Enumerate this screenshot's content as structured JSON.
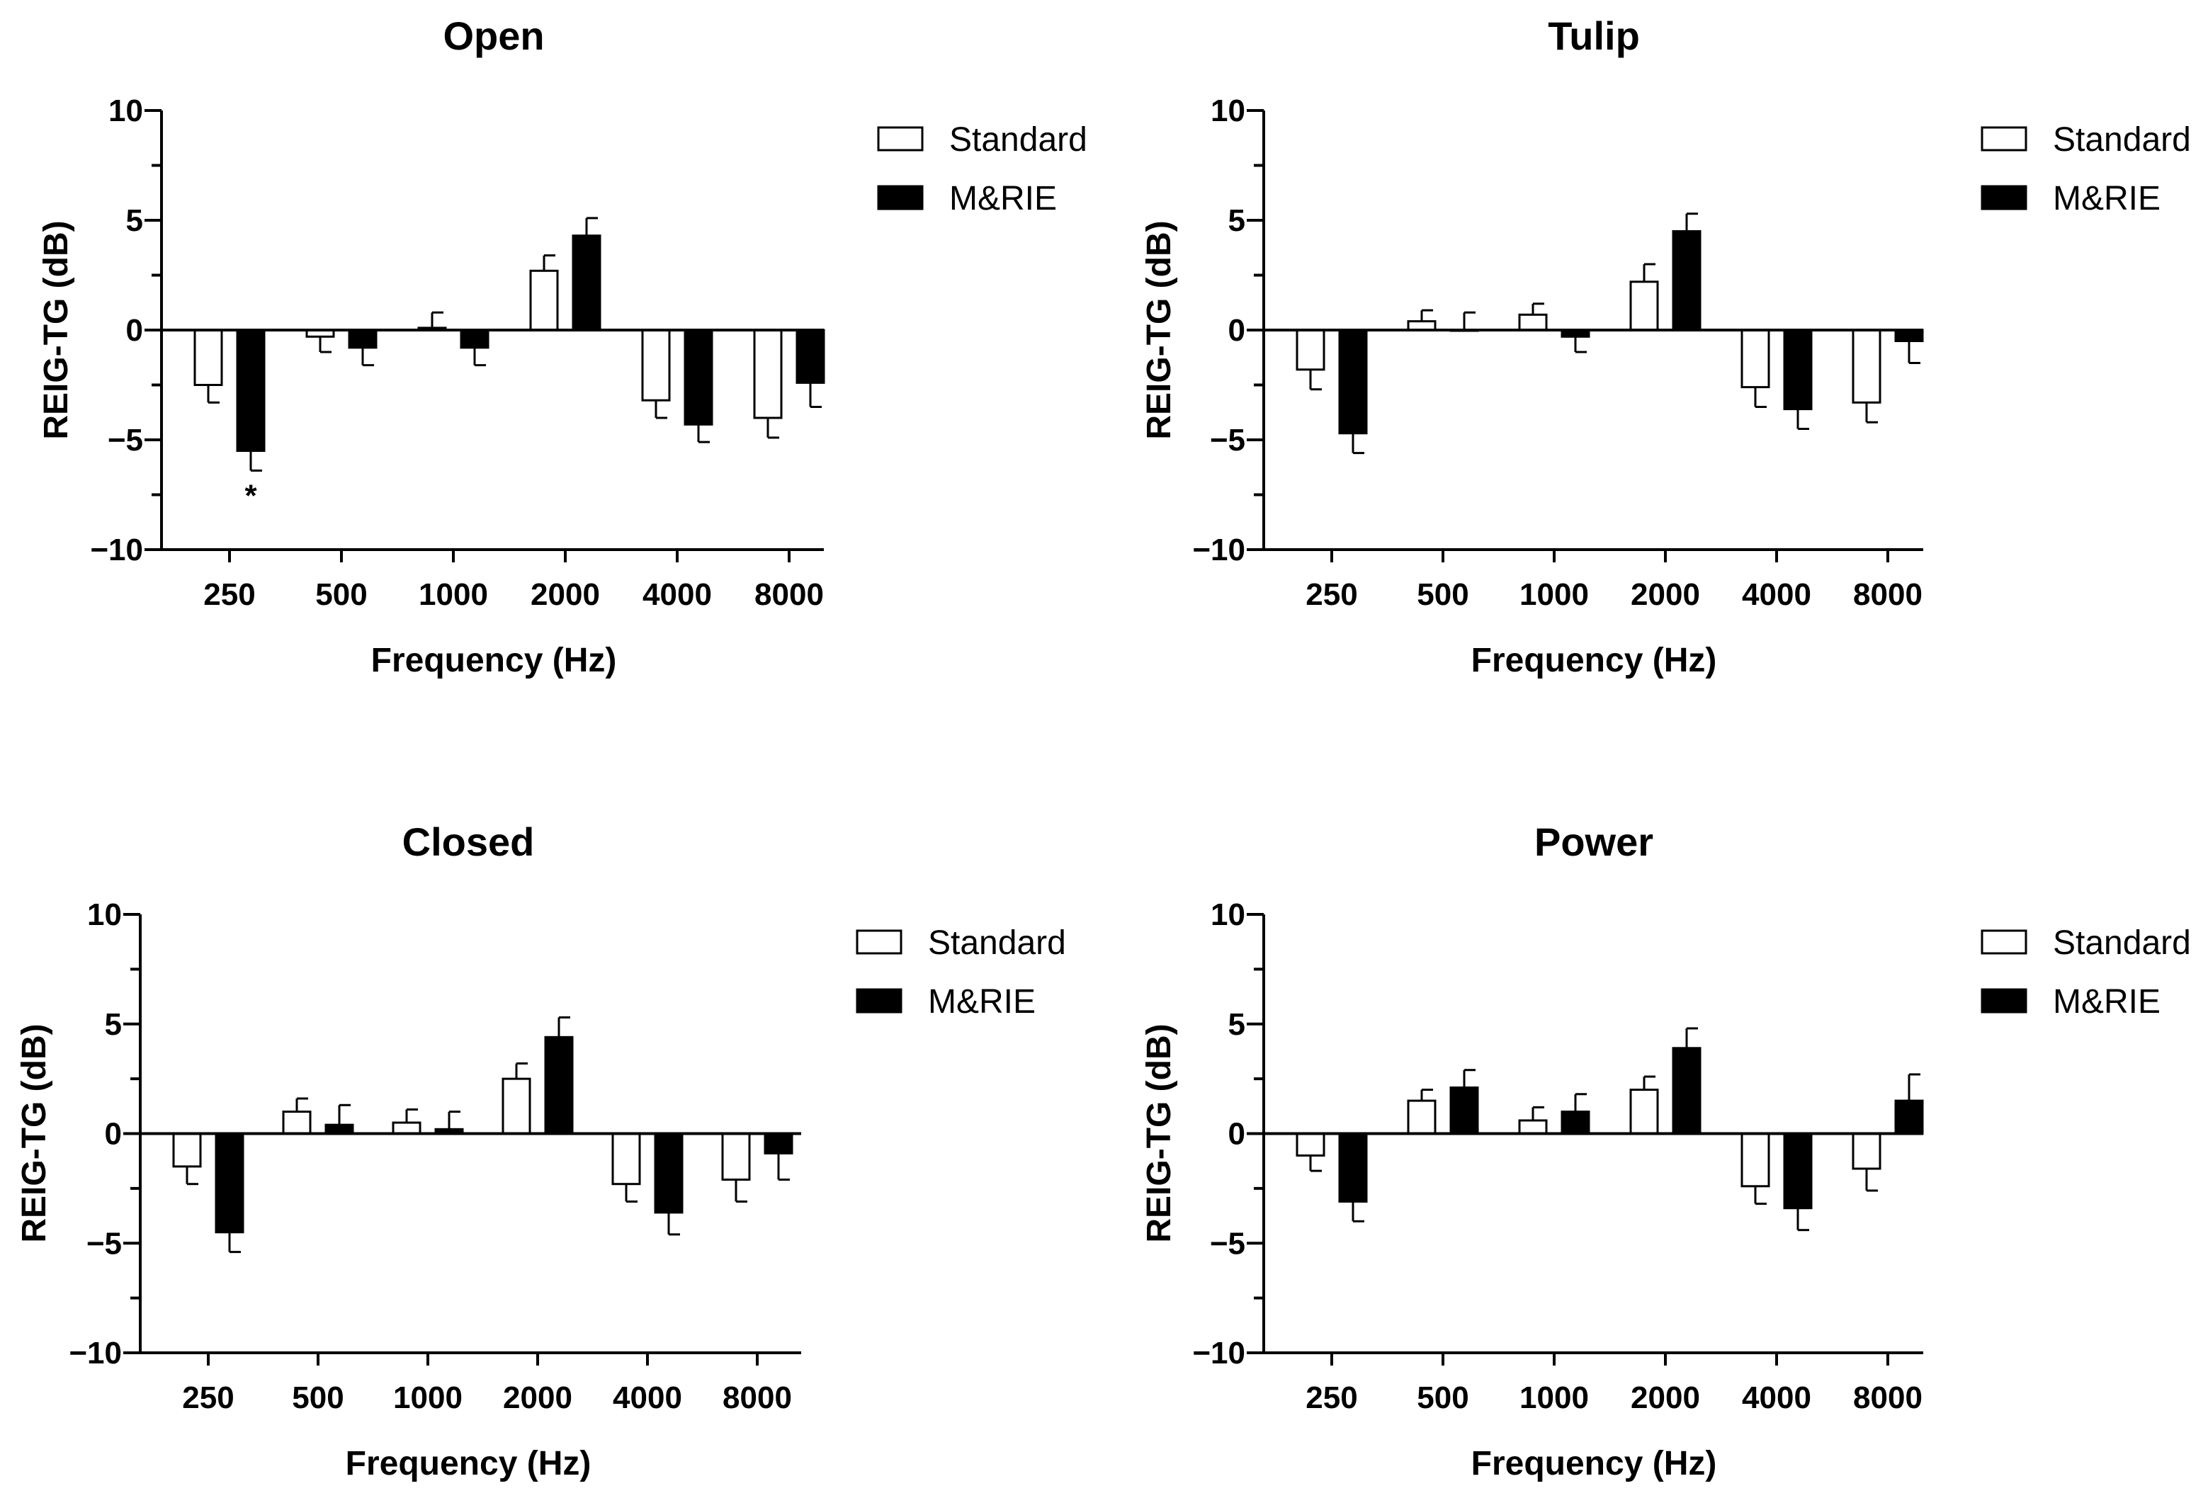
{
  "chart_data": [
    {
      "type": "bar",
      "title": "Open",
      "xlabel": "Frequency (Hz)",
      "ylabel": "REIG-TG (dB)",
      "ylim": [
        -10,
        10
      ],
      "yticks": [
        10,
        5,
        0,
        -5,
        -10
      ],
      "categories": [
        "250",
        "500",
        "1000",
        "2000",
        "4000",
        "8000"
      ],
      "legend": "right",
      "series": [
        {
          "name": "Standard",
          "fill": "#ffffff",
          "values": [
            -2.5,
            -0.3,
            0.1,
            2.7,
            -3.2,
            -4.0
          ],
          "errors": [
            0.8,
            0.7,
            0.7,
            0.7,
            0.8,
            0.9
          ]
        },
        {
          "name": "M&RIE",
          "fill": "#000000",
          "values": [
            -5.5,
            -0.8,
            -0.8,
            4.3,
            -4.3,
            -2.4
          ],
          "errors": [
            0.9,
            0.8,
            0.8,
            0.8,
            0.8,
            1.1
          ]
        }
      ],
      "annotations": [
        {
          "category": "250",
          "series": "M&RIE",
          "text": "*"
        }
      ]
    },
    {
      "type": "bar",
      "title": "Tulip",
      "xlabel": "Frequency (Hz)",
      "ylabel": "REIG-TG (dB)",
      "ylim": [
        -10,
        10
      ],
      "yticks": [
        10,
        5,
        0,
        -5,
        -10
      ],
      "categories": [
        "250",
        "500",
        "1000",
        "2000",
        "4000",
        "8000"
      ],
      "legend": "right",
      "series": [
        {
          "name": "Standard",
          "fill": "#ffffff",
          "values": [
            -1.8,
            0.4,
            0.7,
            2.2,
            -2.6,
            -3.3
          ],
          "errors": [
            0.9,
            0.5,
            0.5,
            0.8,
            0.9,
            0.9
          ]
        },
        {
          "name": "M&RIE",
          "fill": "#000000",
          "values": [
            -4.7,
            0.0,
            -0.3,
            4.5,
            -3.6,
            -0.5
          ],
          "errors": [
            0.9,
            0.8,
            0.7,
            0.8,
            0.9,
            1.0
          ]
        }
      ],
      "annotations": []
    },
    {
      "type": "bar",
      "title": "Closed",
      "xlabel": "Frequency (Hz)",
      "ylabel": "REIG-TG (dB)",
      "ylim": [
        -10,
        10
      ],
      "yticks": [
        10,
        5,
        0,
        -5,
        -10
      ],
      "categories": [
        "250",
        "500",
        "1000",
        "2000",
        "4000",
        "8000"
      ],
      "legend": "right",
      "series": [
        {
          "name": "Standard",
          "fill": "#ffffff",
          "values": [
            -1.5,
            1.0,
            0.5,
            2.5,
            -2.3,
            -2.1
          ],
          "errors": [
            0.8,
            0.6,
            0.6,
            0.7,
            0.8,
            1.0
          ]
        },
        {
          "name": "M&RIE",
          "fill": "#000000",
          "values": [
            -4.5,
            0.4,
            0.2,
            4.4,
            -3.6,
            -0.9
          ],
          "errors": [
            0.9,
            0.9,
            0.8,
            0.9,
            1.0,
            1.2
          ]
        }
      ],
      "annotations": []
    },
    {
      "type": "bar",
      "title": "Power",
      "xlabel": "Frequency (Hz)",
      "ylabel": "REIG-TG (dB)",
      "ylim": [
        -10,
        10
      ],
      "yticks": [
        10,
        5,
        0,
        -5,
        -10
      ],
      "categories": [
        "250",
        "500",
        "1000",
        "2000",
        "4000",
        "8000"
      ],
      "legend": "right",
      "series": [
        {
          "name": "Standard",
          "fill": "#ffffff",
          "values": [
            -1.0,
            1.5,
            0.6,
            2.0,
            -2.4,
            -1.6
          ],
          "errors": [
            0.7,
            0.5,
            0.6,
            0.6,
            0.8,
            1.0
          ]
        },
        {
          "name": "M&RIE",
          "fill": "#000000",
          "values": [
            -3.1,
            2.1,
            1.0,
            3.9,
            -3.4,
            1.5
          ],
          "errors": [
            0.9,
            0.8,
            0.8,
            0.9,
            1.0,
            1.2
          ]
        }
      ],
      "annotations": []
    }
  ]
}
